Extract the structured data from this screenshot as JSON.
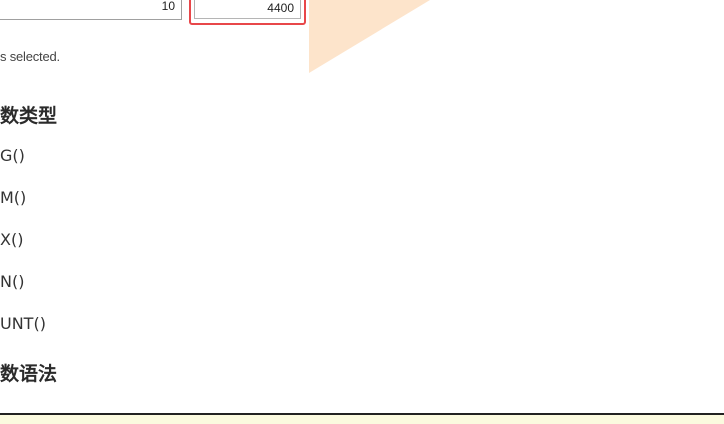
{
  "spreadsheet": {
    "cell_left_value": "10",
    "cell_right_value": "4400",
    "selection_caption": "s selected."
  },
  "section_function_types": {
    "heading": "数类型",
    "functions": [
      "G()",
      "M()",
      "X()",
      "N()",
      "UNT()"
    ]
  },
  "section_function_syntax": {
    "heading": "数语法"
  },
  "colors": {
    "highlight_border": "#e8474a",
    "peach_shape": "#fde3c9",
    "bottom_panel": "#fbfadf"
  }
}
